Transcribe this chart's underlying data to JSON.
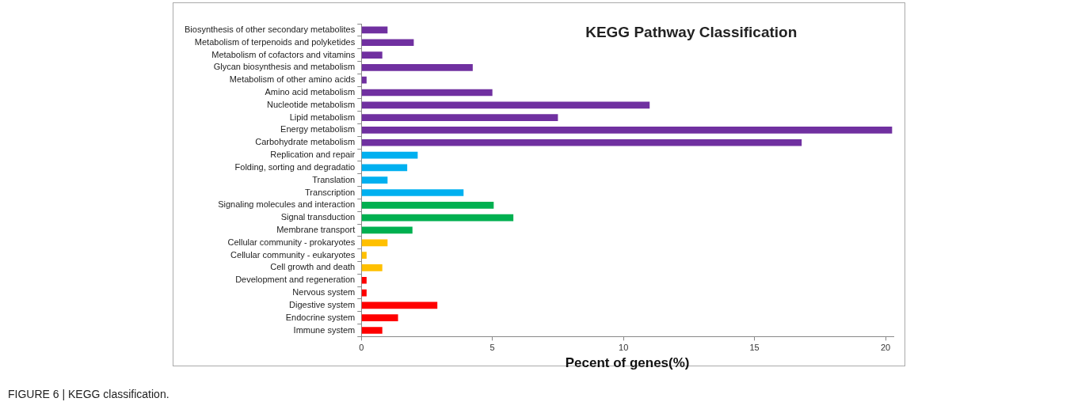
{
  "chart_data": {
    "type": "bar",
    "orientation": "horizontal",
    "title": "KEGG Pathway Classification",
    "xlabel": "Pecent of genes(%)",
    "categories": [
      "Biosynthesis of other secondary metabolites",
      "Metabolism of terpenoids and polyketides",
      "Metabolism of cofactors and vitamins",
      "Glycan biosynthesis and metabolism",
      "Metabolism of other amino acids",
      "Amino acid metabolism",
      "Nucleotide metabolism",
      "Lipid metabolism",
      "Energy metabolism",
      "Carbohydrate metabolism",
      "Replication and repair",
      "Folding, sorting and degradatio",
      "Translation",
      "Transcription",
      "Signaling molecules and interaction",
      "Signal transduction",
      "Membrane transport",
      "Cellular community - prokaryotes",
      "Cellular community - eukaryotes",
      "Cell growth and death",
      "Development and regeneration",
      "Nervous system",
      "Digestive system",
      "Endocrine system",
      "Immune system"
    ],
    "values": [
      1.0,
      2.0,
      0.8,
      4.25,
      0.2,
      5.0,
      11.0,
      7.5,
      20.25,
      16.8,
      2.15,
      1.75,
      1.0,
      3.9,
      5.05,
      5.8,
      1.95,
      1.0,
      0.2,
      0.8,
      0.2,
      0.2,
      2.9,
      1.4,
      0.8
    ],
    "colors": [
      "#7030a0",
      "#7030a0",
      "#7030a0",
      "#7030a0",
      "#7030a0",
      "#7030a0",
      "#7030a0",
      "#7030a0",
      "#7030a0",
      "#7030a0",
      "#00b0f0",
      "#00b0f0",
      "#00b0f0",
      "#00b0f0",
      "#00b050",
      "#00b050",
      "#00b050",
      "#ffc000",
      "#ffc000",
      "#ffc000",
      "#ff0000",
      "#ff0000",
      "#ff0000",
      "#ff0000",
      "#ff0000"
    ],
    "xlim": [
      0,
      20.3
    ],
    "xticks": [
      0,
      5,
      10,
      15,
      20
    ],
    "grid": false,
    "legend": false,
    "annotations": [
      "FIGURE 6 | KEGG classification."
    ]
  }
}
